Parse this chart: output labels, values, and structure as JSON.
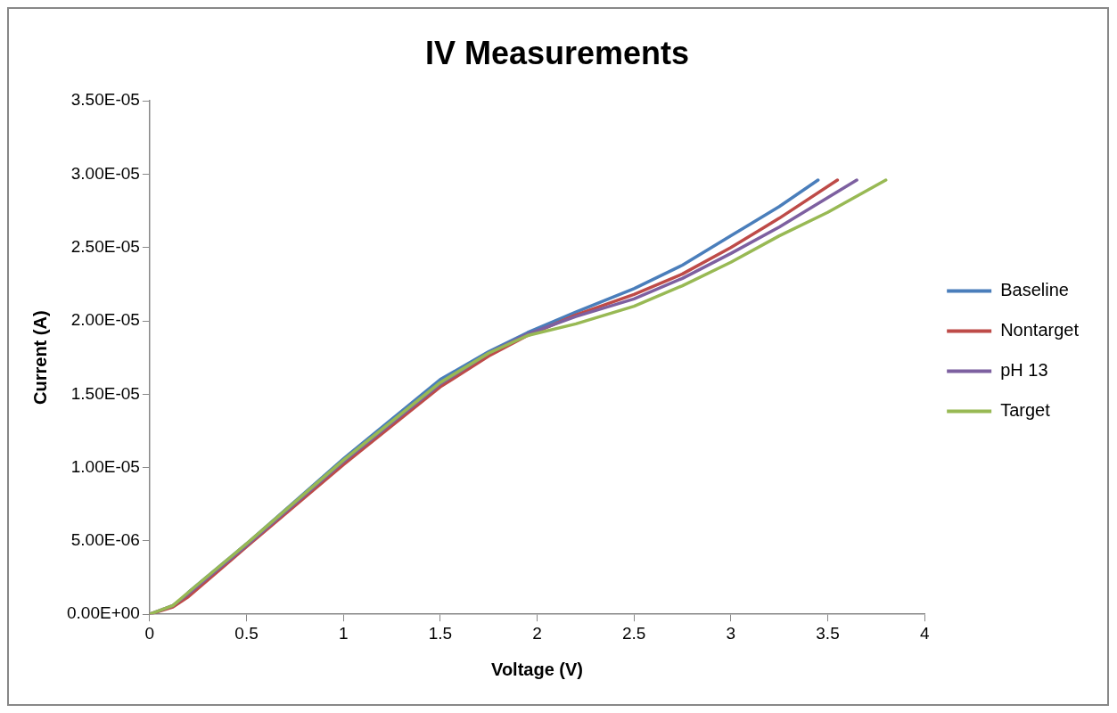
{
  "chart_data": {
    "type": "line",
    "title": "IV Measurements",
    "xlabel": "Voltage (V)",
    "ylabel": "Current (A)",
    "xlim": [
      0,
      4
    ],
    "xticks": [
      0,
      0.5,
      1,
      1.5,
      2,
      2.5,
      3,
      3.5,
      4
    ],
    "ylim": [
      0,
      3.5e-05
    ],
    "yticks": [
      {
        "value": 0,
        "label": "0.00E+00"
      },
      {
        "value": 5e-06,
        "label": "5.00E-06"
      },
      {
        "value": 1e-05,
        "label": "1.00E-05"
      },
      {
        "value": 1.5e-05,
        "label": "1.50E-05"
      },
      {
        "value": 2e-05,
        "label": "2.00E-05"
      },
      {
        "value": 2.5e-05,
        "label": "2.50E-05"
      },
      {
        "value": 3e-05,
        "label": "3.00E-05"
      },
      {
        "value": 3.5e-05,
        "label": "3.50E-05"
      }
    ],
    "grid": false,
    "legend": "right",
    "marker": "none",
    "line_style": "solid",
    "series": [
      {
        "name": "Baseline",
        "color": "#4a7ebb",
        "x": [
          0.2,
          0.5,
          1,
          1.5,
          1.75,
          1.95,
          2.2,
          2.5,
          2.75,
          3,
          3.25,
          3.45
        ],
        "values": [
          1.5e-06,
          4.8e-06,
          1.06e-05,
          1.6e-05,
          1.79e-05,
          1.92e-05,
          2.06e-05,
          2.22e-05,
          2.38e-05,
          2.58e-05,
          2.78e-05,
          2.96e-05
        ]
      },
      {
        "name": "Nontarget",
        "color": "#be4b48",
        "x": [
          0,
          0.12,
          0.2,
          0.5,
          1,
          1.5,
          1.75,
          1.95,
          2.2,
          2.5,
          2.75,
          3,
          3.25,
          3.55
        ],
        "values": [
          0,
          5e-07,
          1.2e-06,
          4.6e-06,
          1.02e-05,
          1.55e-05,
          1.76e-05,
          1.9e-05,
          2.04e-05,
          2.18e-05,
          2.32e-05,
          2.5e-05,
          2.7e-05,
          2.96e-05
        ]
      },
      {
        "name": "pH 13",
        "color": "#7d60a0",
        "x": [
          0,
          0.12,
          0.2,
          0.5,
          1,
          1.5,
          1.75,
          1.95,
          2.2,
          2.5,
          2.75,
          3,
          3.25,
          3.5,
          3.65
        ],
        "values": [
          0,
          6e-07,
          1.4e-06,
          4.7e-06,
          1.04e-05,
          1.57e-05,
          1.78e-05,
          1.91e-05,
          2.03e-05,
          2.15e-05,
          2.29e-05,
          2.46e-05,
          2.64e-05,
          2.84e-05,
          2.96e-05
        ]
      },
      {
        "name": "Target",
        "color": "#98b954",
        "x": [
          0,
          0.12,
          0.2,
          0.5,
          1,
          1.5,
          1.75,
          1.95,
          2.2,
          2.5,
          2.75,
          3,
          3.25,
          3.5,
          3.8
        ],
        "values": [
          0,
          6e-07,
          1.5e-06,
          4.8e-06,
          1.05e-05,
          1.58e-05,
          1.78e-05,
          1.9e-05,
          1.98e-05,
          2.1e-05,
          2.24e-05,
          2.4e-05,
          2.58e-05,
          2.74e-05,
          2.96e-05
        ]
      }
    ]
  }
}
